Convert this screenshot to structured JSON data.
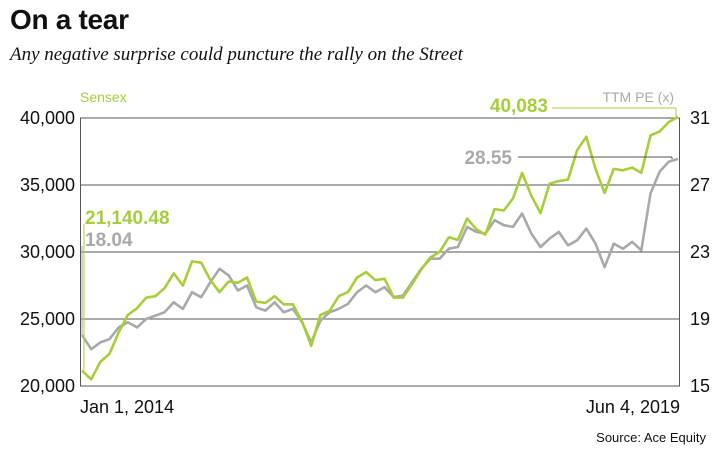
{
  "title": "On a tear",
  "subtitle": "Any negative surprise could puncture the rally on the Street",
  "source": "Source: Ace Equity",
  "colors": {
    "sensex": "#a6ce39",
    "pe": "#a7a9ac",
    "grid": "#555555",
    "text": "#111111"
  },
  "chart_data": {
    "type": "line",
    "x_range": [
      "Jan 1, 2014",
      "Jun 4, 2019"
    ],
    "x_tick_labels": [
      "Jan 1, 2014",
      "Jun 4, 2019"
    ],
    "left_axis": {
      "label": "Sensex",
      "ticks": [
        "20,000",
        "25,000",
        "30,000",
        "35,000",
        "40,000"
      ],
      "range": [
        20000,
        40000
      ]
    },
    "right_axis": {
      "label": "TTM PE (x)",
      "ticks": [
        "15",
        "19",
        "23",
        "27",
        "31"
      ],
      "range": [
        15,
        31
      ]
    },
    "series": [
      {
        "name": "Sensex",
        "axis": "left",
        "x": [
          "2014-01",
          "2014-02",
          "2014-03",
          "2014-04",
          "2014-05",
          "2014-06",
          "2014-07",
          "2014-08",
          "2014-09",
          "2014-10",
          "2014-11",
          "2014-12",
          "2015-01",
          "2015-02",
          "2015-03",
          "2015-04",
          "2015-05",
          "2015-06",
          "2015-07",
          "2015-08",
          "2015-09",
          "2015-10",
          "2015-11",
          "2015-12",
          "2016-01",
          "2016-02",
          "2016-03",
          "2016-04",
          "2016-05",
          "2016-06",
          "2016-07",
          "2016-08",
          "2016-09",
          "2016-10",
          "2016-11",
          "2016-12",
          "2017-01",
          "2017-02",
          "2017-03",
          "2017-04",
          "2017-05",
          "2017-06",
          "2017-07",
          "2017-08",
          "2017-09",
          "2017-10",
          "2017-11",
          "2017-12",
          "2018-01",
          "2018-02",
          "2018-03",
          "2018-04",
          "2018-05",
          "2018-06",
          "2018-07",
          "2018-08",
          "2018-09",
          "2018-10",
          "2018-11",
          "2018-12",
          "2019-01",
          "2019-02",
          "2019-03",
          "2019-04",
          "2019-05",
          "2019-06"
        ],
        "y": [
          21140,
          20500,
          21800,
          22400,
          24000,
          25300,
          25800,
          26600,
          26700,
          27300,
          28400,
          27500,
          29300,
          29200,
          27900,
          27000,
          27800,
          27700,
          28100,
          26300,
          26200,
          26700,
          26100,
          26100,
          24800,
          23000,
          25300,
          25600,
          26700,
          27000,
          28100,
          28500,
          27900,
          28000,
          26600,
          26600,
          27600,
          28700,
          29600,
          30000,
          31100,
          30900,
          32500,
          31700,
          31300,
          33200,
          33100,
          34000,
          35900,
          34200,
          32900,
          35100,
          35300,
          35400,
          37600,
          38600,
          36200,
          34400,
          36200,
          36100,
          36300,
          35900,
          38700,
          39000,
          39700,
          40083
        ]
      },
      {
        "name": "TTM PE (x)",
        "axis": "right",
        "x": [
          "2014-01",
          "2014-02",
          "2014-03",
          "2014-04",
          "2014-05",
          "2014-06",
          "2014-07",
          "2014-08",
          "2014-09",
          "2014-10",
          "2014-11",
          "2014-12",
          "2015-01",
          "2015-02",
          "2015-03",
          "2015-04",
          "2015-05",
          "2015-06",
          "2015-07",
          "2015-08",
          "2015-09",
          "2015-10",
          "2015-11",
          "2015-12",
          "2016-01",
          "2016-02",
          "2016-03",
          "2016-04",
          "2016-05",
          "2016-06",
          "2016-07",
          "2016-08",
          "2016-09",
          "2016-10",
          "2016-11",
          "2016-12",
          "2017-01",
          "2017-02",
          "2017-03",
          "2017-04",
          "2017-05",
          "2017-06",
          "2017-07",
          "2017-08",
          "2017-09",
          "2017-10",
          "2017-11",
          "2017-12",
          "2018-01",
          "2018-02",
          "2018-03",
          "2018-04",
          "2018-05",
          "2018-06",
          "2018-07",
          "2018-08",
          "2018-09",
          "2018-10",
          "2018-11",
          "2018-12",
          "2019-01",
          "2019-02",
          "2019-03",
          "2019-04",
          "2019-05",
          "2019-06"
        ],
        "y": [
          18.04,
          17.2,
          17.6,
          17.8,
          18.5,
          18.8,
          18.5,
          19.0,
          19.2,
          19.4,
          20.0,
          19.6,
          20.6,
          20.3,
          21.2,
          22.0,
          21.6,
          20.7,
          21.0,
          19.7,
          19.5,
          20.0,
          19.4,
          19.6,
          18.8,
          17.6,
          18.9,
          19.4,
          19.6,
          19.9,
          20.6,
          21.0,
          20.6,
          20.9,
          20.3,
          20.4,
          21.2,
          22.0,
          22.6,
          22.6,
          23.2,
          23.3,
          24.5,
          24.2,
          24.1,
          24.9,
          24.6,
          24.5,
          25.3,
          24.1,
          23.3,
          23.8,
          24.2,
          23.4,
          23.7,
          24.4,
          23.5,
          22.1,
          23.5,
          23.2,
          23.6,
          23.1,
          26.5,
          27.8,
          28.4,
          28.55
        ]
      }
    ],
    "annotations": [
      {
        "text": "21,140.48",
        "series": "Sensex",
        "at": "Jan 1, 2014"
      },
      {
        "text": "18.04",
        "series": "TTM PE (x)",
        "at": "Jan 1, 2014"
      },
      {
        "text": "40,083",
        "series": "Sensex",
        "at": "Jun 4, 2019"
      },
      {
        "text": "28.55",
        "series": "TTM PE (x)",
        "at": "Jun 4, 2019"
      }
    ],
    "grid": "horizontal",
    "legend": "axis labels"
  }
}
